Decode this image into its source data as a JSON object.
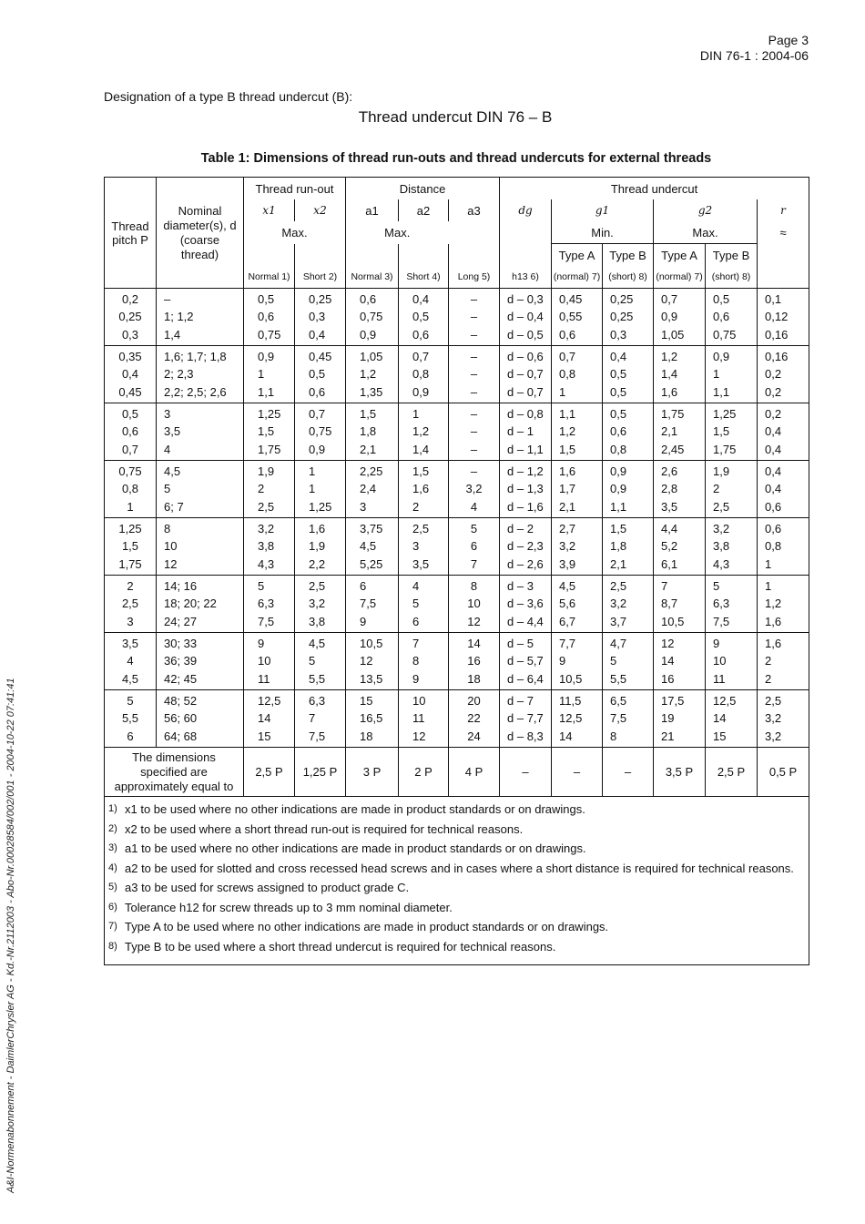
{
  "header": {
    "page": "Page 3",
    "standard": "DIN 76-1 : 2004-06"
  },
  "designation_intro": "Designation of a type B thread undercut (B):",
  "designation": "Thread undercut DIN 76 – B",
  "table_caption": "Table 1:  Dimensions of thread run-outs and thread undercuts for external threads",
  "side_note": "A&I-Normenabonnement - DaimlerChrysler AG - Kd.-Nr.2112003 - Abo-Nr.00028584/002/001 - 2004-10-22 07:41:41",
  "table": {
    "head": {
      "pitch": "Thread pitch P",
      "nominal": "Nominal diameter(s), d (coarse thread)",
      "runout": "Thread run-out",
      "distance": "Distance",
      "undercut": "Thread undercut",
      "x1": "x1",
      "x2": "x2",
      "a1": "a1",
      "a2": "a2",
      "a3": "a3",
      "dg": "dg",
      "g1": "g1",
      "g2": "g2",
      "r": "r",
      "max": "Max.",
      "min": "Min.",
      "approx": "≈",
      "typeA": "Type A",
      "typeB": "Type B",
      "normal1": "Normal 1)",
      "short2": "Short 2)",
      "normal3": "Normal 3)",
      "short4": "Short 4)",
      "long5": "Long 5)",
      "h13": "h13 6)",
      "normal7": "(normal) 7)",
      "short8": "(short) 8)"
    },
    "groups": [
      [
        "0,2\n0,25\n0,3",
        "–\n1; 1,2\n1,4",
        "0,5\n0,6\n0,75",
        "0,25\n0,3\n0,4",
        "0,6\n0,75\n0,9",
        "0,4\n0,5\n0,6",
        "–\n–\n–",
        "d – 0,3\nd – 0,4\nd – 0,5",
        "0,45\n0,55\n0,6",
        "0,25\n0,25\n0,3",
        "0,7\n0,9\n1,05",
        "0,5\n0,6\n0,75",
        "0,1\n0,12\n0,16"
      ],
      [
        "0,35\n0,4\n0,45",
        "1,6; 1,7; 1,8\n2; 2,3\n2,2; 2,5; 2,6",
        "0,9\n1\n1,1",
        "0,45\n0,5\n0,6",
        "1,05\n1,2\n1,35",
        "0,7\n0,8\n0,9",
        "–\n–\n–",
        "d – 0,6\nd – 0,7\nd – 0,7",
        "0,7\n0,8\n1",
        "0,4\n0,5\n0,5",
        "1,2\n1,4\n1,6",
        "0,9\n1\n1,1",
        "0,16\n0,2\n0,2"
      ],
      [
        "0,5\n0,6\n0,7",
        "3\n3,5\n4",
        "1,25\n1,5\n1,75",
        "0,7\n0,75\n0,9",
        "1,5\n1,8\n2,1",
        "1\n1,2\n1,4",
        "–\n–\n–",
        "d – 0,8\nd – 1\nd – 1,1",
        "1,1\n1,2\n1,5",
        "0,5\n0,6\n0,8",
        "1,75\n2,1\n2,45",
        "1,25\n1,5\n1,75",
        "0,2\n0,4\n0,4"
      ],
      [
        "0,75\n0,8\n1",
        "4,5\n5\n6; 7",
        "1,9\n2\n2,5",
        "1\n1\n1,25",
        "2,25\n2,4\n3",
        "1,5\n1,6\n2",
        "–\n3,2\n4",
        "d – 1,2\nd – 1,3\nd – 1,6",
        "1,6\n1,7\n2,1",
        "0,9\n0,9\n1,1",
        "2,6\n2,8\n3,5",
        "1,9\n2\n2,5",
        "0,4\n0,4\n0,6"
      ],
      [
        "1,25\n1,5\n1,75",
        "8\n10\n12",
        "3,2\n3,8\n4,3",
        "1,6\n1,9\n2,2",
        "3,75\n4,5\n5,25",
        "2,5\n3\n3,5",
        "5\n6\n7",
        "d – 2\nd – 2,3\nd – 2,6",
        "2,7\n3,2\n3,9",
        "1,5\n1,8\n2,1",
        "4,4\n5,2\n6,1",
        "3,2\n3,8\n4,3",
        "0,6\n0,8\n1"
      ],
      [
        "2\n2,5\n3",
        "14; 16\n18; 20; 22\n24; 27",
        "5\n6,3\n7,5",
        "2,5\n3,2\n3,8",
        "6\n7,5\n9",
        "4\n5\n6",
        "8\n10\n12",
        "d – 3\nd – 3,6\nd – 4,4",
        "4,5\n5,6\n6,7",
        "2,5\n3,2\n3,7",
        "7\n8,7\n10,5",
        "5\n6,3\n7,5",
        "1\n1,2\n1,6"
      ],
      [
        "3,5\n4\n4,5",
        "30; 33\n36; 39\n42; 45",
        "9\n10\n11",
        "4,5\n5\n5,5",
        "10,5\n12\n13,5",
        "7\n8\n9",
        "14\n16\n18",
        "d – 5\nd – 5,7\nd – 6,4",
        "7,7\n9\n10,5",
        "4,7\n5\n5,5",
        "12\n14\n16",
        "9\n10\n11",
        "1,6\n2\n2"
      ],
      [
        "5\n5,5\n6",
        "48; 52\n56; 60\n64; 68",
        "12,5\n14\n15",
        "6,3\n7\n7,5",
        "15\n16,5\n18",
        "10\n11\n12",
        "20\n22\n24",
        "d – 7\nd – 7,7\nd – 8,3",
        "11,5\n12,5\n14",
        "6,5\n7,5\n8",
        "17,5\n19\n21",
        "12,5\n14\n15",
        "2,5\n3,2\n3,2"
      ]
    ],
    "approx_row": {
      "label": "The dimensions specified are approximately equal to",
      "values": [
        "2,5 P",
        "1,25 P",
        "3 P",
        "2 P",
        "4 P",
        "–",
        "–",
        "–",
        "3,5 P",
        "2,5 P",
        "0,5 P"
      ]
    },
    "footnotes": [
      {
        "n": "1)",
        "text": "x1 to be used where no other indications are made in product standards or on drawings."
      },
      {
        "n": "2)",
        "text": "x2 to be used where a short thread run-out is required for technical reasons."
      },
      {
        "n": "3)",
        "text": "a1 to be used where no other indications are made in product standards or on drawings."
      },
      {
        "n": "4)",
        "text": "a2 to be used for slotted and cross recessed head screws and in cases where a short distance is required for technical reasons."
      },
      {
        "n": "5)",
        "text": "a3 to be used for screws assigned to product grade C."
      },
      {
        "n": "6)",
        "text": "Tolerance h12 for screw threads up to 3 mm nominal diameter."
      },
      {
        "n": "7)",
        "text": "Type A to be used where no other indications are made in product standards or on drawings."
      },
      {
        "n": "8)",
        "text": "Type B to be used where a short thread undercut is required for technical reasons."
      }
    ]
  }
}
